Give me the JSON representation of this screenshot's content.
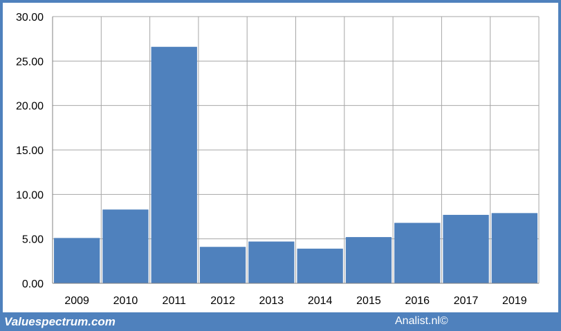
{
  "footer": {
    "left_text": "Valuespectrum.com",
    "right_text": "Analist.nl©"
  },
  "colors": {
    "bar": "#4f81bd",
    "frame": "#4f81bd",
    "grid": "#a6a6a6"
  },
  "chart_data": {
    "type": "bar",
    "title": "",
    "xlabel": "",
    "ylabel": "",
    "categories": [
      "2009",
      "2010",
      "2011",
      "2012",
      "2013",
      "2014",
      "2015",
      "2016",
      "2017",
      "2019"
    ],
    "values": [
      5.1,
      8.3,
      26.6,
      4.1,
      4.7,
      3.9,
      5.2,
      6.8,
      7.7,
      7.9
    ],
    "ylim": [
      0,
      30
    ],
    "yticks": [
      "0.00",
      "5.00",
      "10.00",
      "15.00",
      "20.00",
      "25.00",
      "30.00"
    ],
    "grid": true,
    "legend": "none"
  }
}
